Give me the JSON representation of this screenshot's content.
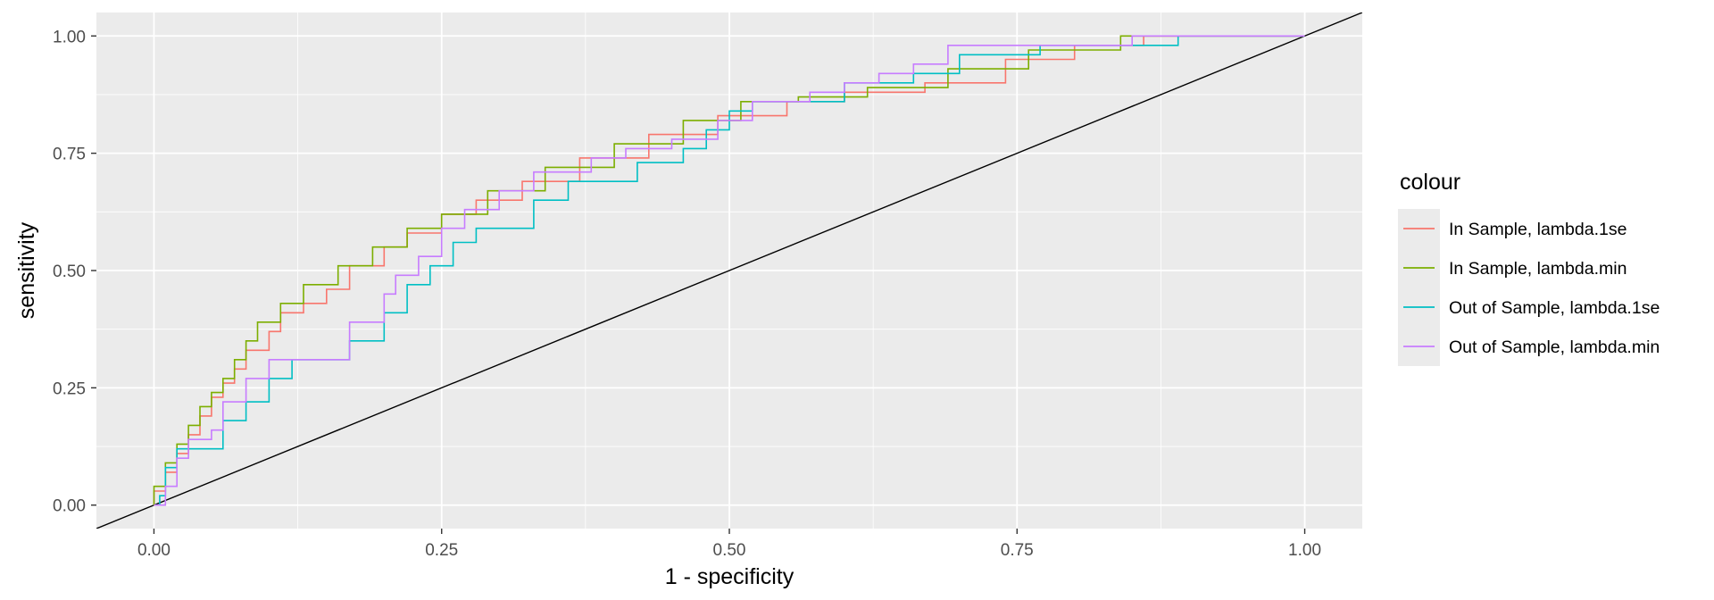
{
  "chart_data": {
    "type": "line",
    "title": "",
    "xlabel": "1 - specificity",
    "ylabel": "sensitivity",
    "xlim": [
      -0.05,
      1.05
    ],
    "ylim": [
      -0.05,
      1.05
    ],
    "x_ticks": [
      0.0,
      0.25,
      0.5,
      0.75,
      1.0
    ],
    "y_ticks": [
      0.0,
      0.25,
      0.5,
      0.75,
      1.0
    ],
    "x_tick_labels": [
      "0.00",
      "0.25",
      "0.50",
      "0.75",
      "1.00"
    ],
    "y_tick_labels": [
      "0.00",
      "0.25",
      "0.50",
      "0.75",
      "1.00"
    ],
    "grid": true,
    "background": "#EBEBEB",
    "legend": {
      "title": "colour",
      "position": "right"
    },
    "series": [
      {
        "name": "In Sample, lambda.1se",
        "color": "#F8766D",
        "points": [
          [
            0,
            0
          ],
          [
            0,
            0.03
          ],
          [
            0.01,
            0.07
          ],
          [
            0.02,
            0.11
          ],
          [
            0.03,
            0.15
          ],
          [
            0.04,
            0.19
          ],
          [
            0.05,
            0.23
          ],
          [
            0.06,
            0.26
          ],
          [
            0.07,
            0.29
          ],
          [
            0.08,
            0.33
          ],
          [
            0.1,
            0.37
          ],
          [
            0.11,
            0.41
          ],
          [
            0.13,
            0.43
          ],
          [
            0.15,
            0.46
          ],
          [
            0.17,
            0.51
          ],
          [
            0.2,
            0.55
          ],
          [
            0.22,
            0.58
          ],
          [
            0.25,
            0.62
          ],
          [
            0.28,
            0.65
          ],
          [
            0.32,
            0.69
          ],
          [
            0.37,
            0.74
          ],
          [
            0.43,
            0.79
          ],
          [
            0.49,
            0.83
          ],
          [
            0.55,
            0.86
          ],
          [
            0.6,
            0.88
          ],
          [
            0.67,
            0.9
          ],
          [
            0.74,
            0.95
          ],
          [
            0.8,
            0.98
          ],
          [
            0.86,
            1.0
          ],
          [
            1.0,
            1.0
          ]
        ]
      },
      {
        "name": "In Sample, lambda.min",
        "color": "#7CAE00",
        "points": [
          [
            0,
            0
          ],
          [
            0,
            0.04
          ],
          [
            0.01,
            0.09
          ],
          [
            0.02,
            0.13
          ],
          [
            0.03,
            0.17
          ],
          [
            0.04,
            0.21
          ],
          [
            0.05,
            0.24
          ],
          [
            0.06,
            0.27
          ],
          [
            0.07,
            0.31
          ],
          [
            0.08,
            0.35
          ],
          [
            0.09,
            0.39
          ],
          [
            0.11,
            0.43
          ],
          [
            0.13,
            0.47
          ],
          [
            0.16,
            0.51
          ],
          [
            0.19,
            0.55
          ],
          [
            0.22,
            0.59
          ],
          [
            0.25,
            0.62
          ],
          [
            0.29,
            0.67
          ],
          [
            0.34,
            0.72
          ],
          [
            0.4,
            0.77
          ],
          [
            0.46,
            0.82
          ],
          [
            0.51,
            0.86
          ],
          [
            0.56,
            0.87
          ],
          [
            0.62,
            0.89
          ],
          [
            0.69,
            0.93
          ],
          [
            0.76,
            0.97
          ],
          [
            0.84,
            1.0
          ],
          [
            1.0,
            1.0
          ]
        ]
      },
      {
        "name": "Out of Sample, lambda.1se",
        "color": "#00BFC4",
        "points": [
          [
            0,
            0
          ],
          [
            0.005,
            0.02
          ],
          [
            0.01,
            0.08
          ],
          [
            0.02,
            0.12
          ],
          [
            0.05,
            0.12
          ],
          [
            0.06,
            0.18
          ],
          [
            0.08,
            0.22
          ],
          [
            0.1,
            0.27
          ],
          [
            0.12,
            0.31
          ],
          [
            0.16,
            0.31
          ],
          [
            0.17,
            0.35
          ],
          [
            0.2,
            0.41
          ],
          [
            0.22,
            0.47
          ],
          [
            0.24,
            0.51
          ],
          [
            0.26,
            0.56
          ],
          [
            0.28,
            0.59
          ],
          [
            0.31,
            0.59
          ],
          [
            0.33,
            0.65
          ],
          [
            0.36,
            0.69
          ],
          [
            0.39,
            0.69
          ],
          [
            0.42,
            0.73
          ],
          [
            0.46,
            0.76
          ],
          [
            0.48,
            0.8
          ],
          [
            0.5,
            0.84
          ],
          [
            0.52,
            0.86
          ],
          [
            0.57,
            0.86
          ],
          [
            0.6,
            0.9
          ],
          [
            0.66,
            0.92
          ],
          [
            0.7,
            0.96
          ],
          [
            0.77,
            0.98
          ],
          [
            0.87,
            0.98
          ],
          [
            0.89,
            1.0
          ],
          [
            1.0,
            1.0
          ]
        ]
      },
      {
        "name": "Out of Sample, lambda.min",
        "color": "#C77CFF",
        "points": [
          [
            0,
            0
          ],
          [
            0.01,
            0.04
          ],
          [
            0.02,
            0.1
          ],
          [
            0.03,
            0.14
          ],
          [
            0.05,
            0.16
          ],
          [
            0.06,
            0.22
          ],
          [
            0.08,
            0.27
          ],
          [
            0.1,
            0.31
          ],
          [
            0.16,
            0.31
          ],
          [
            0.17,
            0.39
          ],
          [
            0.19,
            0.39
          ],
          [
            0.2,
            0.45
          ],
          [
            0.21,
            0.49
          ],
          [
            0.23,
            0.53
          ],
          [
            0.25,
            0.59
          ],
          [
            0.27,
            0.63
          ],
          [
            0.3,
            0.67
          ],
          [
            0.33,
            0.71
          ],
          [
            0.36,
            0.71
          ],
          [
            0.38,
            0.74
          ],
          [
            0.41,
            0.76
          ],
          [
            0.45,
            0.78
          ],
          [
            0.49,
            0.82
          ],
          [
            0.52,
            0.86
          ],
          [
            0.57,
            0.88
          ],
          [
            0.6,
            0.9
          ],
          [
            0.63,
            0.92
          ],
          [
            0.66,
            0.94
          ],
          [
            0.69,
            0.98
          ],
          [
            0.77,
            0.98
          ],
          [
            0.85,
            1.0
          ],
          [
            1.0,
            1.0
          ]
        ]
      }
    ],
    "reference_line": {
      "type": "diagonal",
      "slope": 1,
      "intercept": 0,
      "color": "#000000"
    }
  }
}
